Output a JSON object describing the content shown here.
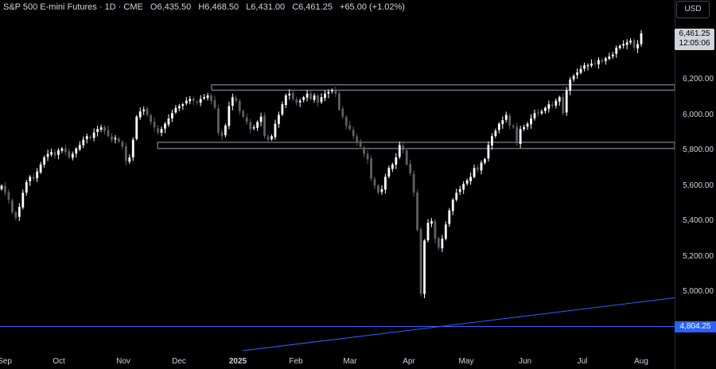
{
  "header": {
    "symbol": "S&P 500 E-mini Futures · 1D · CME",
    "open": "O6,435.50",
    "high": "H6,468.50",
    "low": "L6,431.00",
    "close": "C6,461.25",
    "change": "+65.00 (+1.02%)"
  },
  "currency": "USD",
  "last_price": {
    "value": "6,461.25",
    "countdown": "12:05:06"
  },
  "level_label": "4,804.25",
  "colors": {
    "background": "#000000",
    "candle_up": "#ffffff",
    "candle_down": "#5d6066",
    "line": "#2962ff",
    "box": "#9b9ea5"
  },
  "chart_data": {
    "type": "candlestick",
    "yticks": [
      {
        "value": 6200,
        "label": "6,200.00"
      },
      {
        "value": 6000,
        "label": "6,000.00"
      },
      {
        "value": 5800,
        "label": "5,800.00"
      },
      {
        "value": 5600,
        "label": "5,600.00"
      },
      {
        "value": 5400,
        "label": "5,400.00"
      },
      {
        "value": 5200,
        "label": "5,200.00"
      },
      {
        "value": 5000,
        "label": "5,000.00"
      }
    ],
    "xticks": [
      {
        "label": "Sep",
        "bold": false
      },
      {
        "label": "Oct",
        "bold": false
      },
      {
        "label": "Nov",
        "bold": false
      },
      {
        "label": "Dec",
        "bold": false
      },
      {
        "label": "2025",
        "bold": true
      },
      {
        "label": "Feb",
        "bold": false
      },
      {
        "label": "Mar",
        "bold": false
      },
      {
        "label": "Apr",
        "bold": false
      },
      {
        "label": "May",
        "bold": false
      },
      {
        "label": "Jun",
        "bold": false
      },
      {
        "label": "Jul",
        "bold": false
      },
      {
        "label": "Aug",
        "bold": false
      }
    ],
    "zones": [
      {
        "low": 6140,
        "high": 6170
      },
      {
        "low": 5810,
        "high": 5845
      }
    ],
    "horizontal_level": 4804.25,
    "closes": [
      5600,
      5560,
      5520,
      5450,
      5420,
      5480,
      5560,
      5620,
      5650,
      5640,
      5680,
      5720,
      5760,
      5780,
      5790,
      5770,
      5800,
      5810,
      5790,
      5760,
      5780,
      5810,
      5830,
      5860,
      5880,
      5870,
      5900,
      5920,
      5930,
      5910,
      5880,
      5860,
      5870,
      5850,
      5820,
      5740,
      5760,
      5860,
      5990,
      6020,
      6030,
      6000,
      5960,
      5930,
      5900,
      5920,
      5950,
      5980,
      6010,
      6040,
      6050,
      6060,
      6080,
      6090,
      6080,
      6070,
      6090,
      6100,
      6110,
      6080,
      6040,
      5900,
      5880,
      5940,
      6050,
      6100,
      6080,
      6020,
      5990,
      5960,
      5920,
      5930,
      5960,
      5990,
      5880,
      5860,
      5880,
      5950,
      6000,
      6060,
      6110,
      6120,
      6090,
      6070,
      6080,
      6100,
      6120,
      6090,
      6110,
      6070,
      6100,
      6120,
      6130,
      6140,
      6120,
      6030,
      5990,
      5940,
      5920,
      5880,
      5850,
      5820,
      5780,
      5750,
      5640,
      5600,
      5560,
      5580,
      5650,
      5700,
      5720,
      5760,
      5830,
      5800,
      5720,
      5670,
      5560,
      5350,
      4990,
      5290,
      5390,
      5400,
      5300,
      5250,
      5300,
      5380,
      5460,
      5520,
      5560,
      5580,
      5610,
      5630,
      5650,
      5700,
      5690,
      5730,
      5750,
      5830,
      5880,
      5910,
      5950,
      5970,
      6000,
      5940,
      5930,
      5840,
      5920,
      5930,
      5950,
      5980,
      6010,
      6010,
      6020,
      6040,
      6060,
      6050,
      6080,
      6100,
      6010,
      6140,
      6200,
      6220,
      6240,
      6260,
      6280,
      6280,
      6290,
      6290,
      6310,
      6300,
      6320,
      6330,
      6340,
      6380,
      6390,
      6400,
      6410,
      6420,
      6380,
      6400,
      6461
    ],
    "trendline": {
      "from": {
        "index": 123,
        "value": 4804
      },
      "to": {
        "index": 188,
        "value": 4980
      }
    }
  }
}
